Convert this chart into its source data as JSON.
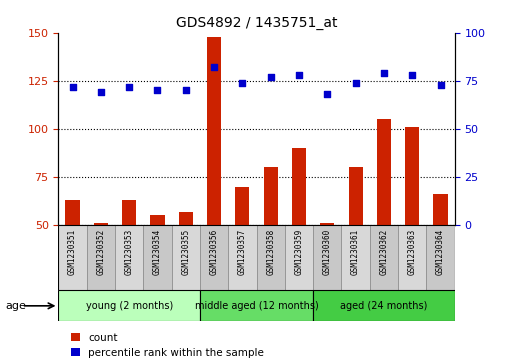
{
  "title": "GDS4892 / 1435751_at",
  "samples": [
    "GSM1230351",
    "GSM1230352",
    "GSM1230353",
    "GSM1230354",
    "GSM1230355",
    "GSM1230356",
    "GSM1230357",
    "GSM1230358",
    "GSM1230359",
    "GSM1230360",
    "GSM1230361",
    "GSM1230362",
    "GSM1230363",
    "GSM1230364"
  ],
  "counts": [
    63,
    51,
    63,
    55,
    57,
    148,
    70,
    80,
    90,
    51,
    80,
    105,
    101,
    66
  ],
  "percentile_ranks": [
    72,
    69,
    72,
    70,
    70,
    82,
    74,
    77,
    78,
    68,
    74,
    79,
    78,
    73
  ],
  "groups": [
    {
      "label": "young (2 months)",
      "start": 0,
      "end": 5,
      "color": "#bbffbb"
    },
    {
      "label": "middle aged (12 months)",
      "start": 5,
      "end": 9,
      "color": "#66dd66"
    },
    {
      "label": "aged (24 months)",
      "start": 9,
      "end": 14,
      "color": "#44cc44"
    }
  ],
  "age_label": "age",
  "bar_color": "#cc2200",
  "scatter_color": "#0000cc",
  "ylim_left": [
    50,
    150
  ],
  "ylim_right": [
    0,
    100
  ],
  "yticks_left": [
    50,
    75,
    100,
    125,
    150
  ],
  "yticks_right": [
    0,
    25,
    50,
    75,
    100
  ],
  "legend_count_label": "count",
  "legend_percentile_label": "percentile rank within the sample",
  "background_color": "#ffffff",
  "cell_color_odd": "#d8d8d8",
  "cell_color_even": "#c8c8c8"
}
